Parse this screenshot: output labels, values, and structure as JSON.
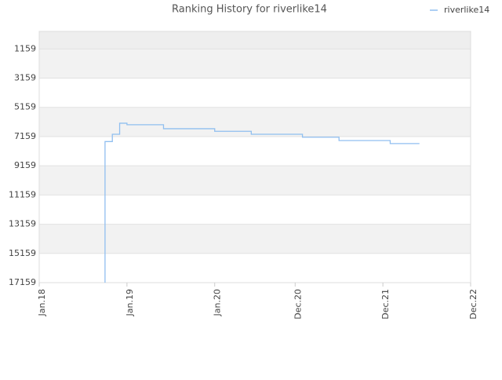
{
  "chart_data": {
    "type": "line",
    "title": "Ranking History for riverlike14",
    "x": [
      "2018-10",
      "2018-11",
      "2018-12",
      "2019-01",
      "2019-06",
      "2020-01",
      "2020-06",
      "2021-01",
      "2021-06",
      "2022-01",
      "2022-05"
    ],
    "series": [
      {
        "name": "riverlike14",
        "color": "#90bff0",
        "values": [
          17159,
          7500,
          7000,
          6245,
          6350,
          6620,
          6800,
          7000,
          7200,
          7430,
          7640
        ]
      }
    ],
    "xlim": [
      "2018-01",
      "2022-12"
    ],
    "xticks": [
      {
        "value": "2018-01",
        "label": "Jan.18"
      },
      {
        "value": "2019-01",
        "label": "Jan.19"
      },
      {
        "value": "2020-01",
        "label": "Jan.20"
      },
      {
        "value": "2020-12",
        "label": "Dec.20"
      },
      {
        "value": "2021-12",
        "label": "Dec.21"
      },
      {
        "value": "2022-12",
        "label": "Dec.22"
      }
    ],
    "ylim": [
      17159,
      -41
    ],
    "yticks": [
      1159,
      3159,
      5159,
      7159,
      9159,
      11159,
      13159,
      15159,
      17159
    ],
    "grid": true,
    "legend": "top-right"
  }
}
